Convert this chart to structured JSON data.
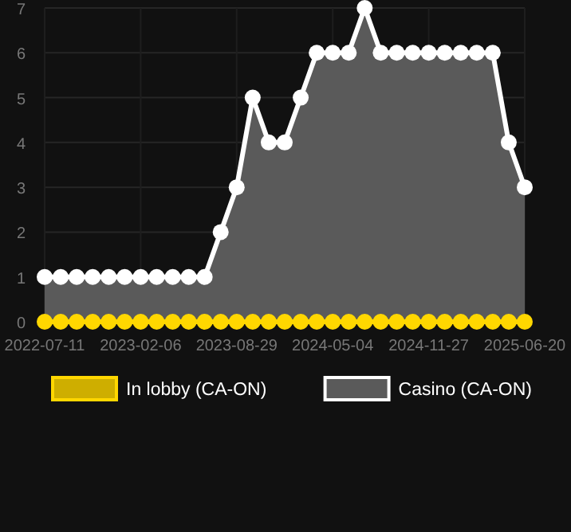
{
  "chart_data": {
    "type": "area",
    "categories": [
      "2022-07-11",
      null,
      null,
      null,
      null,
      null,
      "2023-02-06",
      null,
      null,
      null,
      null,
      null,
      "2023-08-29",
      null,
      null,
      null,
      null,
      null,
      "2024-05-04",
      null,
      null,
      null,
      null,
      null,
      "2024-11-27",
      null,
      null,
      null,
      null,
      null,
      "2025-06-20"
    ],
    "series": [
      {
        "name": "Casino (CA-ON)",
        "color": "#ffffff",
        "values": [
          1,
          1,
          1,
          1,
          1,
          1,
          1,
          1,
          1,
          1,
          1,
          2,
          3,
          5,
          4,
          4,
          5,
          6,
          6,
          6,
          7,
          6,
          6,
          6,
          6,
          6,
          6,
          6,
          6,
          4,
          3
        ]
      },
      {
        "name": "In lobby (CA-ON)",
        "type": "line",
        "color": "#ffd700",
        "values": [
          0,
          0,
          0,
          0,
          0,
          0,
          0,
          0,
          0,
          0,
          0,
          0,
          0,
          0,
          0,
          0,
          0,
          0,
          0,
          0,
          0,
          0,
          0,
          0,
          0,
          0,
          0,
          0,
          0,
          0,
          0
        ]
      }
    ],
    "ylim": [
      0,
      7
    ],
    "yticks": [
      0,
      1,
      2,
      3,
      4,
      5,
      6,
      7
    ],
    "grid": true,
    "legend": "bottom",
    "marker": "circle"
  }
}
